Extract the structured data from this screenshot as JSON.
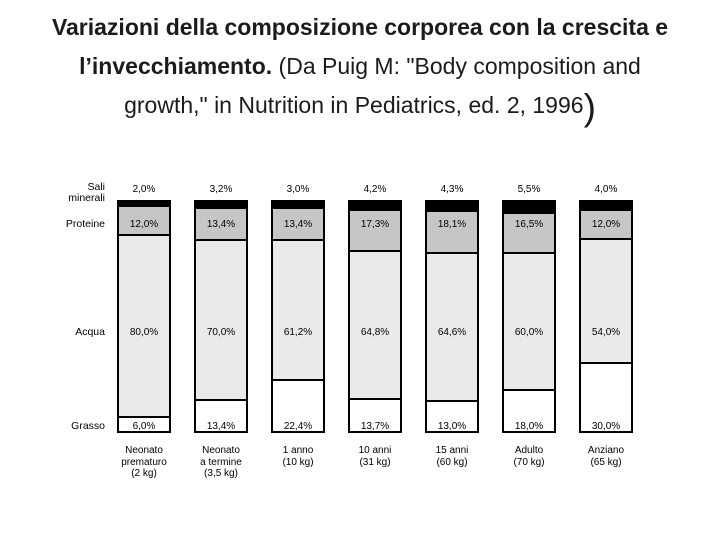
{
  "title": {
    "bold_line1": "Variazioni della composizione corporea con la crescita e",
    "bold_line2": "l’invecchiamento.",
    "normal_line2": " (Da Puig M: \"Body composition and",
    "normal_line3": "growth,\" in Nutrition in Pediatrics, ed. 2, 1996",
    "closing_paren": ")"
  },
  "chart_data": {
    "type": "bar",
    "stacked": true,
    "orientation": "vertical",
    "unit": "%",
    "ylim": [
      0,
      100
    ],
    "grid": false,
    "legend_position": "left-row-labels",
    "row_labels": [
      "Sali\nminerali",
      "Proteine",
      "Acqua",
      "Grasso"
    ],
    "categories": [
      "Neonato prematuro (2 kg)",
      "Neonato a termine (3,5 kg)",
      "1 anno (10 kg)",
      "10 anni (31 kg)",
      "15 anni (60 kg)",
      "Adulto (70 kg)",
      "Anziano (65 kg)"
    ],
    "categories_lines": [
      [
        "Neonato",
        "prematuro",
        "(2 kg)"
      ],
      [
        "Neonato",
        "a termine",
        "(3,5 kg)"
      ],
      [
        "1 anno",
        "(10 kg)"
      ],
      [
        "10 anni",
        "(31 kg)"
      ],
      [
        "15 anni",
        "(60 kg)"
      ],
      [
        "Adulto",
        "(70 kg)"
      ],
      [
        "Anziano",
        "(65 kg)"
      ]
    ],
    "series": [
      {
        "name": "Sali minerali",
        "color": "#000000",
        "values": [
          2.0,
          3.2,
          3.0,
          4.2,
          4.3,
          5.5,
          4.0
        ]
      },
      {
        "name": "Proteine",
        "color": "#c6c6c6",
        "values": [
          12.0,
          13.4,
          13.4,
          17.3,
          18.1,
          16.5,
          12.0
        ]
      },
      {
        "name": "Acqua",
        "color": "#eaeaea",
        "values": [
          80.0,
          70.0,
          61.2,
          64.8,
          64.6,
          60.0,
          54.0
        ]
      },
      {
        "name": "Grasso",
        "color": "#ffffff",
        "values": [
          6.0,
          13.4,
          22.4,
          13.7,
          13.0,
          18.0,
          30.0
        ]
      }
    ],
    "value_labels": {
      "sali_minerali": [
        "2,0%",
        "3,2%",
        "3,0%",
        "4,2%",
        "4,3%",
        "5,5%",
        "4,0%"
      ],
      "proteine": [
        "12,0%",
        "13,4%",
        "13,4%",
        "17,3%",
        "18,1%",
        "16,5%",
        "12,0%"
      ],
      "acqua": [
        "80,0%",
        "70,0%",
        "61,2%",
        "64,8%",
        "64,6%",
        "60,0%",
        "54,0%"
      ],
      "grasso": [
        "6,0%",
        "13,4%",
        "22,4%",
        "13,7%",
        "13,0%",
        "18,0%",
        "30,0%"
      ]
    }
  }
}
